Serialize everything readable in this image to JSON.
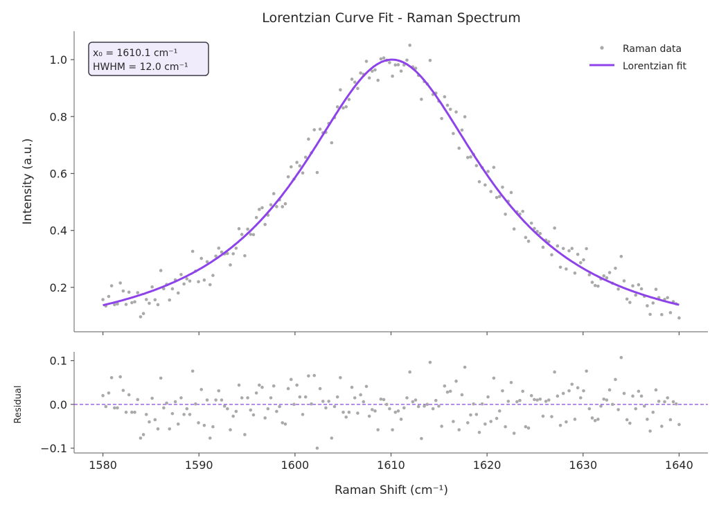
{
  "chart_data": [
    {
      "type": "scatter+line",
      "title": "Lorentzian Curve Fit - Raman Spectrum",
      "xlabel": "",
      "ylabel": "Intensity (a.u.)",
      "xlim": [
        1577,
        1643
      ],
      "ylim": [
        0.044,
        1.1
      ],
      "xticks": [
        1580,
        1590,
        1600,
        1610,
        1620,
        1630,
        1640
      ],
      "yticks": [
        "0.2",
        "0.4",
        "0.6",
        "0.8",
        "1.0"
      ],
      "grid": false,
      "legend": {
        "placement": "top-right",
        "entries": [
          "Raman data",
          "Lorentzian fit"
        ]
      },
      "annotation": {
        "line1": "x₀ = 1610.1 cm⁻¹",
        "line2": "HWHM = 12.0 cm⁻¹"
      },
      "fit": {
        "model": "lorentzian",
        "x0": 1610.1,
        "hwhm": 12.0,
        "amplitude": 1.0
      },
      "x_range": [
        1580,
        1640
      ],
      "n_points": 200,
      "colors": {
        "data": "#a9a9a9",
        "fit": "#8e42ea",
        "annotation_bg": "#f0ecfc"
      }
    },
    {
      "type": "scatter",
      "xlabel": "Raman Shift (cm⁻¹)",
      "ylabel": "Residual",
      "xlim": [
        1577,
        1643
      ],
      "ylim": [
        -0.111,
        0.12
      ],
      "xticks": [
        "1580",
        "1590",
        "1600",
        "1610",
        "1620",
        "1630",
        "1640"
      ],
      "yticks": [
        "−0.1",
        "0.0",
        "0.1"
      ],
      "ytick_values": [
        -0.1,
        0.0,
        0.1
      ],
      "reference_line": 0,
      "residuals": [
        0.02,
        -0.005,
        0.026,
        0.061,
        -0.008,
        -0.008,
        0.063,
        0.032,
        -0.018,
        0.022,
        -0.018,
        -0.018,
        0.011,
        -0.077,
        -0.069,
        -0.023,
        -0.04,
        0.014,
        -0.035,
        -0.056,
        0.06,
        -0.008,
        0.003,
        -0.056,
        -0.021,
        0.006,
        -0.045,
        0.015,
        -0.023,
        -0.01,
        -0.023,
        0.076,
        0.001,
        -0.042,
        0.034,
        -0.048,
        0.01,
        -0.077,
        -0.051,
        0.01,
        0.031,
        0.01,
        -0.004,
        -0.01,
        -0.058,
        -0.027,
        -0.016,
        0.044,
        0.015,
        -0.069,
        0.015,
        -0.013,
        -0.024,
        0.026,
        0.044,
        0.039,
        -0.031,
        -0.01,
        0.015,
        0.042,
        -0.016,
        -0.005,
        -0.042,
        -0.045,
        0.036,
        0.057,
        0.0,
        0.044,
        0.017,
        -0.023,
        0.017,
        0.065,
        0.001,
        0.066,
        -0.1,
        0.036,
        0.007,
        -0.008,
        0.007,
        -0.077,
        -0.005,
        0.017,
        0.061,
        -0.018,
        -0.029,
        -0.018,
        0.039,
        0.015,
        -0.02,
        0.022,
        0.006,
        0.041,
        -0.027,
        -0.012,
        -0.015,
        -0.058,
        0.012,
        0.011,
        0.0,
        -0.01,
        -0.058,
        -0.018,
        -0.015,
        -0.034,
        -0.008,
        0.015,
        0.074,
        0.006,
        0.01,
        -0.005,
        -0.078,
        -0.004,
        0.0,
        0.096,
        -0.01,
        0.009,
        -0.004,
        -0.05,
        0.042,
        0.028,
        0.03,
        -0.039,
        0.053,
        -0.058,
        0.022,
        0.085,
        -0.042,
        -0.024,
        0.001,
        -0.023,
        -0.064,
        0.001,
        -0.045,
        0.017,
        -0.039,
        0.06,
        -0.032,
        -0.015,
        0.031,
        -0.051,
        0.007,
        0.05,
        -0.066,
        0.006,
        0.009,
        0.03,
        -0.051,
        -0.054,
        0.02,
        0.011,
        0.01,
        0.012,
        -0.027,
        0.007,
        0.01,
        -0.028,
        0.074,
        0.019,
        -0.048,
        0.025,
        -0.04,
        0.031,
        0.046,
        -0.034,
        0.038,
        0.015,
        0.031,
        0.076,
        -0.01,
        -0.031,
        -0.037,
        -0.034,
        -0.004,
        0.012,
        0.01,
        0.033,
        0.0,
        0.057,
        -0.012,
        0.107,
        0.025,
        -0.035,
        -0.043,
        0.019,
        -0.01,
        0.03,
        0.019,
        -0.004,
        -0.034,
        -0.061,
        -0.018,
        0.033,
        0.007,
        -0.05,
        0.006,
        0.015,
        -0.035,
        0.006,
        0.001,
        -0.046
      ]
    }
  ]
}
